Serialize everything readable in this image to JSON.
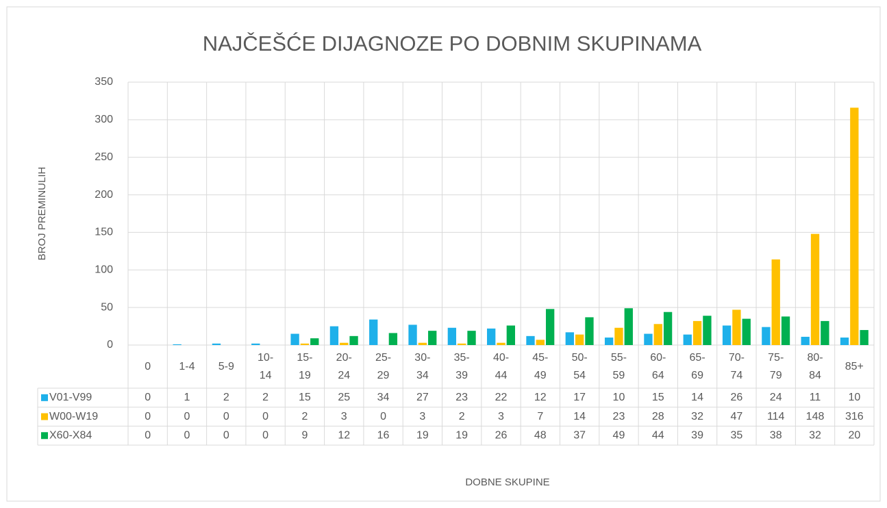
{
  "chart_data": {
    "type": "bar",
    "title": "NAJČEŠĆE DIJAGNOZE PO DOBNIM SKUPINAMA",
    "x_label": "DOBNE SKUPINE",
    "y_label": "BROJ PREMINULIH",
    "categories": [
      "0",
      "1-4",
      "5-9",
      "10-14",
      "15-19",
      "20-24",
      "25-29",
      "30-34",
      "35-39",
      "40-44",
      "45-49",
      "50-54",
      "55-59",
      "60-64",
      "65-69",
      "70-74",
      "75-79",
      "80-84",
      "85+"
    ],
    "series": [
      {
        "name": "V01-V99",
        "color": "#1eb0ea",
        "values": [
          0,
          1,
          2,
          2,
          15,
          25,
          34,
          27,
          23,
          22,
          12,
          17,
          10,
          15,
          14,
          26,
          24,
          11,
          10
        ]
      },
      {
        "name": "W00-W19",
        "color": "#ffc000",
        "values": [
          0,
          0,
          0,
          0,
          2,
          3,
          0,
          3,
          2,
          3,
          7,
          14,
          23,
          28,
          32,
          47,
          114,
          148,
          316
        ]
      },
      {
        "name": "X60-X84",
        "color": "#00b050",
        "values": [
          0,
          0,
          0,
          0,
          9,
          12,
          16,
          19,
          19,
          26,
          48,
          37,
          49,
          44,
          39,
          35,
          38,
          32,
          20
        ]
      }
    ],
    "ylim": [
      0,
      350
    ],
    "yticks": [
      0,
      50,
      100,
      150,
      200,
      250,
      300,
      350
    ],
    "grid": true
  }
}
